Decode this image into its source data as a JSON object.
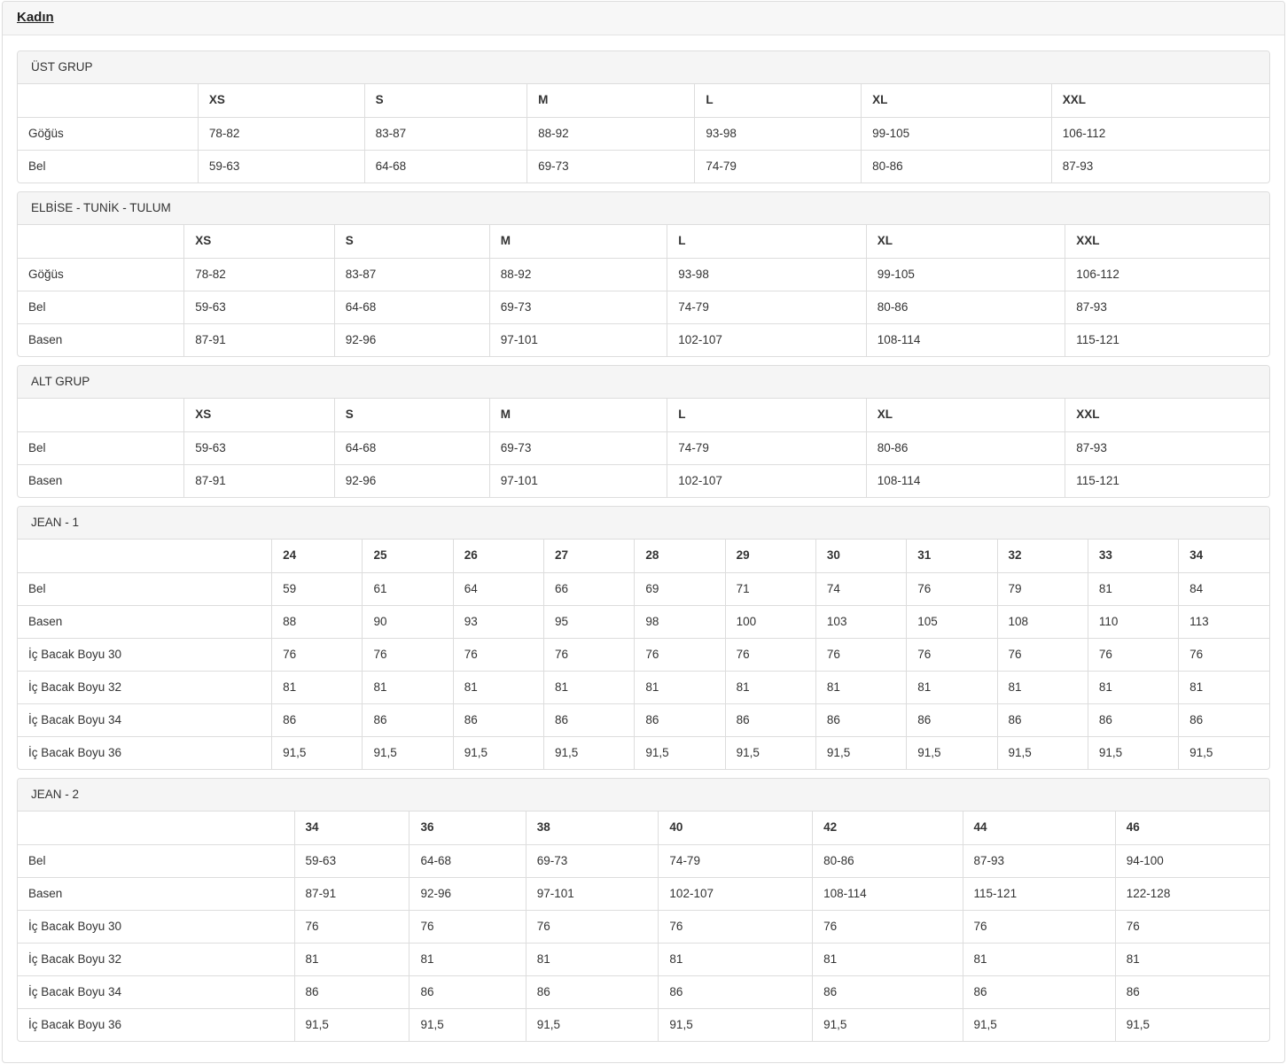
{
  "page": {
    "title": "Kadın"
  },
  "sections": [
    {
      "id": "ust-grup",
      "heading": "ÜST GRUP",
      "columns": [
        "XS",
        "S",
        "M",
        "L",
        "XL",
        "XXL"
      ],
      "rows": [
        {
          "label": "Göğüs",
          "values": [
            "78-82",
            "83-87",
            "88-92",
            "93-98",
            "99-105",
            "106-112"
          ]
        },
        {
          "label": "Bel",
          "values": [
            "59-63",
            "64-68",
            "69-73",
            "74-79",
            "80-86",
            "87-93"
          ]
        }
      ]
    },
    {
      "id": "elbise-tunik-tulum",
      "heading": "ELBİSE - TUNİK - TULUM",
      "columns": [
        "XS",
        "S",
        "M",
        "L",
        "XL",
        "XXL"
      ],
      "rows": [
        {
          "label": "Göğüs",
          "values": [
            "78-82",
            "83-87",
            "88-92",
            "93-98",
            "99-105",
            "106-112"
          ]
        },
        {
          "label": "Bel",
          "values": [
            "59-63",
            "64-68",
            "69-73",
            "74-79",
            "80-86",
            "87-93"
          ]
        },
        {
          "label": "Basen",
          "values": [
            "87-91",
            "92-96",
            "97-101",
            "102-107",
            "108-114",
            "115-121"
          ]
        }
      ]
    },
    {
      "id": "alt-grup",
      "heading": "ALT GRUP",
      "columns": [
        "XS",
        "S",
        "M",
        "L",
        "XL",
        "XXL"
      ],
      "rows": [
        {
          "label": "Bel",
          "values": [
            "59-63",
            "64-68",
            "69-73",
            "74-79",
            "80-86",
            "87-93"
          ]
        },
        {
          "label": "Basen",
          "values": [
            "87-91",
            "92-96",
            "97-101",
            "102-107",
            "108-114",
            "115-121"
          ]
        }
      ]
    },
    {
      "id": "jean-1",
      "heading": "JEAN - 1",
      "columns": [
        "24",
        "25",
        "26",
        "27",
        "28",
        "29",
        "30",
        "31",
        "32",
        "33",
        "34"
      ],
      "rows": [
        {
          "label": "Bel",
          "values": [
            "59",
            "61",
            "64",
            "66",
            "69",
            "71",
            "74",
            "76",
            "79",
            "81",
            "84"
          ]
        },
        {
          "label": "Basen",
          "values": [
            "88",
            "90",
            "93",
            "95",
            "98",
            "100",
            "103",
            "105",
            "108",
            "110",
            "113"
          ]
        },
        {
          "label": "İç Bacak Boyu 30",
          "values": [
            "76",
            "76",
            "76",
            "76",
            "76",
            "76",
            "76",
            "76",
            "76",
            "76",
            "76"
          ]
        },
        {
          "label": "İç Bacak Boyu 32",
          "values": [
            "81",
            "81",
            "81",
            "81",
            "81",
            "81",
            "81",
            "81",
            "81",
            "81",
            "81"
          ]
        },
        {
          "label": "İç Bacak Boyu 34",
          "values": [
            "86",
            "86",
            "86",
            "86",
            "86",
            "86",
            "86",
            "86",
            "86",
            "86",
            "86"
          ]
        },
        {
          "label": "İç Bacak Boyu 36",
          "values": [
            "91,5",
            "91,5",
            "91,5",
            "91,5",
            "91,5",
            "91,5",
            "91,5",
            "91,5",
            "91,5",
            "91,5",
            "91,5"
          ]
        }
      ]
    },
    {
      "id": "jean-2",
      "heading": "JEAN - 2",
      "columns": [
        "34",
        "36",
        "38",
        "40",
        "42",
        "44",
        "46"
      ],
      "rows": [
        {
          "label": "Bel",
          "values": [
            "59-63",
            "64-68",
            "69-73",
            "74-79",
            "80-86",
            "87-93",
            "94-100"
          ]
        },
        {
          "label": "Basen",
          "values": [
            "87-91",
            "92-96",
            "97-101",
            "102-107",
            "108-114",
            "115-121",
            "122-128"
          ]
        },
        {
          "label": "İç Bacak Boyu 30",
          "values": [
            "76",
            "76",
            "76",
            "76",
            "76",
            "76",
            "76"
          ]
        },
        {
          "label": "İç Bacak Boyu 32",
          "values": [
            "81",
            "81",
            "81",
            "81",
            "81",
            "81",
            "81"
          ]
        },
        {
          "label": "İç Bacak Boyu 34",
          "values": [
            "86",
            "86",
            "86",
            "86",
            "86",
            "86",
            "86"
          ]
        },
        {
          "label": "İç Bacak Boyu 36",
          "values": [
            "91,5",
            "91,5",
            "91,5",
            "91,5",
            "91,5",
            "91,5",
            "91,5"
          ]
        }
      ]
    }
  ]
}
